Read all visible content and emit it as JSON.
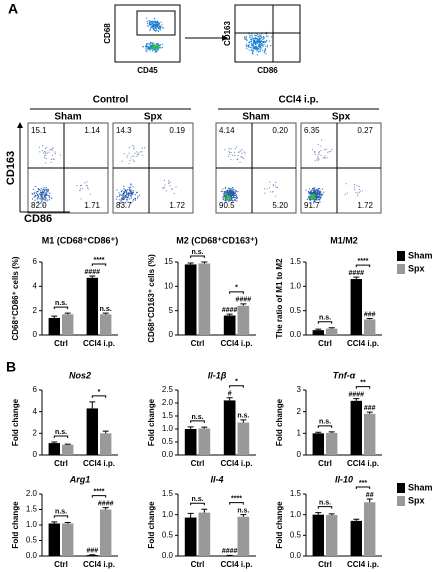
{
  "panel_labels": [
    "A",
    "B"
  ],
  "gating": [
    {
      "x_label": "CD45",
      "y_label": "CD68"
    },
    {
      "x_label": "CD86",
      "y_label": "CD163"
    }
  ],
  "flow": {
    "x_label": "CD86",
    "y_label": "CD163",
    "groups": [
      {
        "label": "Control",
        "panels": [
          {
            "label": "Sham",
            "quadrants": [
              "15.1",
              "1.14",
              "82.0",
              "1.71"
            ]
          },
          {
            "label": "Spx",
            "quadrants": [
              "14.3",
              "0.19",
              "83.7",
              "1.72"
            ]
          }
        ]
      },
      {
        "label": "CCl4 i.p.",
        "panels": [
          {
            "label": "Sham",
            "quadrants": [
              "4.14",
              "0.20",
              "90.5",
              "5.20"
            ]
          },
          {
            "label": "Spx",
            "quadrants": [
              "6.35",
              "0.27",
              "91.7",
              "1.72"
            ]
          }
        ]
      }
    ]
  },
  "charts": [
    {
      "type": "bar",
      "title": "M1 (CD68⁺CD86⁺)",
      "ylabel": "CD68⁺CD86⁺ cells (%)",
      "categories": [
        "Ctrl",
        "CCl4 i.p."
      ],
      "ylim": [
        0,
        6
      ],
      "yticks": [
        0,
        2,
        4,
        6
      ],
      "series": [
        {
          "name": "Sham",
          "color": "#000000",
          "values": [
            1.4,
            4.7
          ],
          "errors": [
            0.15,
            0.15
          ]
        },
        {
          "name": "Spx",
          "color": "#999999",
          "values": [
            1.7,
            1.7
          ],
          "errors": [
            0.1,
            0.1
          ]
        }
      ],
      "annotations": [
        {
          "text": "n.s.",
          "group": 0
        },
        {
          "text": "****",
          "group": 1
        },
        {
          "text": "####",
          "group": 1,
          "series": 0
        },
        {
          "text": "n.s.",
          "group": 1,
          "series": 1
        }
      ]
    },
    {
      "type": "bar",
      "title": "M2 (CD68⁺CD163⁺)",
      "ylabel": "CD68⁺CD163⁺ cells (%)",
      "categories": [
        "Ctrl",
        "CCl4 i.p."
      ],
      "ylim": [
        0,
        15
      ],
      "yticks": [
        0,
        5,
        10,
        15
      ],
      "series": [
        {
          "name": "Sham",
          "color": "#000000",
          "values": [
            14.5,
            4.0
          ],
          "errors": [
            0.3,
            0.3
          ]
        },
        {
          "name": "Spx",
          "color": "#999999",
          "values": [
            14.7,
            6.0
          ],
          "errors": [
            0.3,
            0.4
          ]
        }
      ],
      "annotations": [
        {
          "text": "n.s.",
          "group": 0
        },
        {
          "text": "*",
          "group": 1
        },
        {
          "text": "####",
          "group": 1,
          "series": 0
        },
        {
          "text": "####",
          "group": 1,
          "series": 1
        }
      ]
    },
    {
      "type": "bar",
      "title": "M1/M2",
      "ylabel": "The ratio of M1 to M2",
      "categories": [
        "Ctrl",
        "CCl4 i.p."
      ],
      "legend": true,
      "ylim": [
        0,
        1.5
      ],
      "yticks": [
        {
          "value": 0,
          "label": "0.0"
        },
        0.5,
        {
          "value": 1,
          "label": "1.0"
        },
        1.5
      ],
      "series": [
        {
          "name": "Sham",
          "color": "#000000",
          "values": [
            0.1,
            1.15
          ],
          "errors": [
            0.02,
            0.04
          ]
        },
        {
          "name": "Spx",
          "color": "#999999",
          "values": [
            0.13,
            0.32
          ],
          "errors": [
            0.02,
            0.02
          ]
        }
      ],
      "annotations": [
        {
          "text": "n.s.",
          "group": 0
        },
        {
          "text": "****",
          "group": 1
        },
        {
          "text": "####",
          "group": 1,
          "series": 0
        },
        {
          "text": "###",
          "group": 1,
          "series": 1
        }
      ]
    },
    {
      "type": "bar",
      "title": "Nos2",
      "title_style": "italic",
      "ylabel": "Fold change",
      "categories": [
        "Ctrl",
        "CCl4 i.p."
      ],
      "ylim": [
        0,
        6
      ],
      "yticks": [
        0,
        2,
        4,
        6
      ],
      "series": [
        {
          "name": "Sham",
          "color": "#000000",
          "values": [
            1.1,
            4.3
          ],
          "errors": [
            0.1,
            0.6
          ]
        },
        {
          "name": "Spx",
          "color": "#999999",
          "values": [
            0.95,
            2.0
          ],
          "errors": [
            0.05,
            0.2
          ]
        }
      ],
      "annotations": [
        {
          "text": "n.s.",
          "group": 0
        },
        {
          "text": "*",
          "group": 1
        }
      ]
    },
    {
      "type": "bar",
      "title": "Il-1β",
      "title_style": "italic",
      "ylabel": "Fold change",
      "categories": [
        "Ctrl",
        "CCl4 i.p."
      ],
      "ylim": [
        0,
        2.5
      ],
      "yticks": [
        {
          "value": 0,
          "label": "0.0"
        },
        0.5,
        {
          "value": 1,
          "label": "1.0"
        },
        1.5,
        {
          "value": 2,
          "label": "2.0"
        },
        2.5
      ],
      "series": [
        {
          "name": "Sham",
          "color": "#000000",
          "values": [
            1.0,
            2.1
          ],
          "errors": [
            0.08,
            0.1
          ]
        },
        {
          "name": "Spx",
          "color": "#999999",
          "values": [
            1.02,
            1.25
          ],
          "errors": [
            0.05,
            0.1
          ]
        }
      ],
      "annotations": [
        {
          "text": "n.s.",
          "group": 0
        },
        {
          "text": "*",
          "group": 1
        },
        {
          "text": "#",
          "group": 1,
          "series": 0
        },
        {
          "text": "n.s.",
          "group": 1,
          "series": 1
        }
      ]
    },
    {
      "type": "bar",
      "title": "Tnf-α",
      "title_style": "italic",
      "ylabel": "Fold change",
      "categories": [
        "Ctrl",
        "CCl4 i.p."
      ],
      "ylim": [
        0,
        3
      ],
      "yticks": [
        0,
        1,
        2,
        3
      ],
      "series": [
        {
          "name": "Sham",
          "color": "#000000",
          "values": [
            1.0,
            2.5
          ],
          "errors": [
            0.05,
            0.1
          ]
        },
        {
          "name": "Spx",
          "color": "#999999",
          "values": [
            1.02,
            1.9
          ],
          "errors": [
            0.05,
            0.08
          ]
        }
      ],
      "annotations": [
        {
          "text": "n.s.",
          "group": 0
        },
        {
          "text": "**",
          "group": 1
        },
        {
          "text": "####",
          "group": 1,
          "series": 0
        },
        {
          "text": "###",
          "group": 1,
          "series": 1
        }
      ]
    },
    {
      "type": "bar",
      "title": "Arg1",
      "title_style": "italic",
      "ylabel": "Fold change",
      "categories": [
        "Ctrl",
        "CCl4 i.p."
      ],
      "ylim": [
        0,
        2
      ],
      "yticks": [
        {
          "value": 0,
          "label": "0.0"
        },
        0.5,
        {
          "value": 1,
          "label": "1.0"
        },
        1.5,
        {
          "value": 2,
          "label": "2.0"
        }
      ],
      "series": [
        {
          "name": "Sham",
          "color": "#000000",
          "values": [
            1.05,
            0.03
          ],
          "errors": [
            0.05,
            0.01
          ]
        },
        {
          "name": "Spx",
          "color": "#999999",
          "values": [
            1.05,
            1.5
          ],
          "errors": [
            0.03,
            0.06
          ]
        }
      ],
      "annotations": [
        {
          "text": "n.s.",
          "group": 0
        },
        {
          "text": "****",
          "group": 1
        },
        {
          "text": "###",
          "group": 1,
          "series": 0
        },
        {
          "text": "####",
          "group": 1,
          "series": 1
        }
      ]
    },
    {
      "type": "bar",
      "title": "Il-4",
      "title_style": "italic",
      "ylabel": "Fold change",
      "categories": [
        "Ctrl",
        "CCl4 i.p."
      ],
      "ylim": [
        0,
        1.5
      ],
      "yticks": [
        {
          "value": 0,
          "label": "0.0"
        },
        0.5,
        {
          "value": 1,
          "label": "1.0"
        },
        1.5
      ],
      "series": [
        {
          "name": "Sham",
          "color": "#000000",
          "values": [
            0.93,
            0.01
          ],
          "errors": [
            0.1,
            0.005
          ]
        },
        {
          "name": "Spx",
          "color": "#999999",
          "values": [
            1.05,
            0.95
          ],
          "errors": [
            0.08,
            0.05
          ]
        }
      ],
      "annotations": [
        {
          "text": "n.s.",
          "group": 0
        },
        {
          "text": "****",
          "group": 1
        },
        {
          "text": "####",
          "group": 1,
          "series": 0
        },
        {
          "text": "n.s.",
          "group": 1,
          "series": 1
        }
      ]
    },
    {
      "type": "bar",
      "title": "Il-10",
      "title_style": "italic",
      "ylabel": "Fold change",
      "categories": [
        "Ctrl",
        "CCl4 i.p."
      ],
      "legend": true,
      "ylim": [
        0,
        1.5
      ],
      "yticks": [
        {
          "value": 0,
          "label": "0.0"
        },
        0.5,
        {
          "value": 1,
          "label": "1.0"
        },
        1.5
      ],
      "series": [
        {
          "name": "Sham",
          "color": "#000000",
          "values": [
            1.0,
            0.85
          ],
          "errors": [
            0.05,
            0.04
          ]
        },
        {
          "name": "Spx",
          "color": "#999999",
          "values": [
            0.99,
            1.3
          ],
          "errors": [
            0.03,
            0.08
          ]
        }
      ],
      "annotations": [
        {
          "text": "n.s.",
          "group": 0
        },
        {
          "text": "***",
          "group": 1
        },
        {
          "text": "##",
          "group": 1,
          "series": 1
        }
      ]
    }
  ]
}
